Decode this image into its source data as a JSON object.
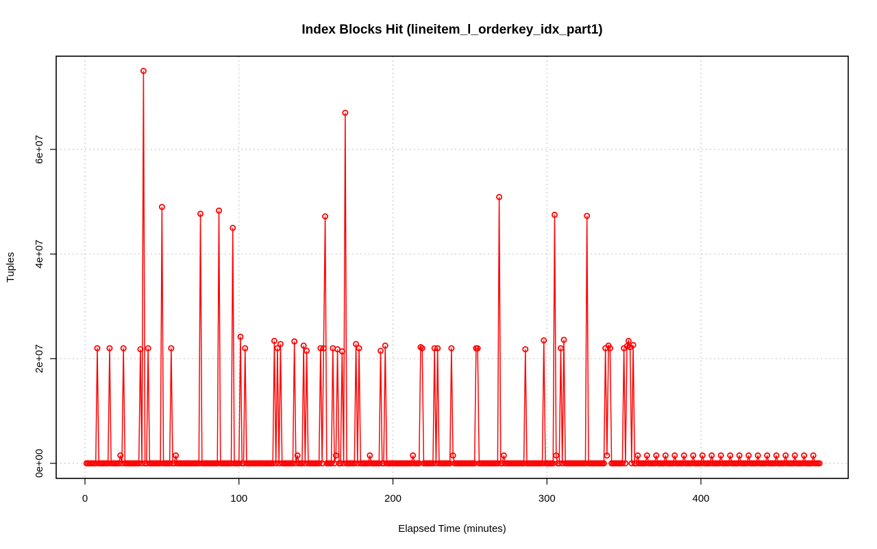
{
  "chart_data": {
    "type": "line",
    "title": "Index Blocks Hit (lineitem_l_orderkey_idx_part1)",
    "xlabel": "Elapsed Time (minutes)",
    "ylabel": "Tuples",
    "xlim": [
      0,
      476
    ],
    "ylim": [
      -3000000,
      78000000
    ],
    "x_ticks": [
      0,
      100,
      200,
      300,
      400
    ],
    "y_ticks": [
      0,
      20000000,
      40000000,
      60000000
    ],
    "x_tick_labels": [
      "0",
      "100",
      "200",
      "300",
      "400"
    ],
    "y_tick_labels": [
      "0e+00",
      "2e+07",
      "4e+07",
      "6e+07"
    ],
    "grid": true,
    "series": [
      {
        "color": "#ff0000",
        "peaks": [
          [
            8,
            22000000
          ],
          [
            16,
            22000000
          ],
          [
            23,
            1500000
          ],
          [
            25,
            22000000
          ],
          [
            36,
            21800000
          ],
          [
            38,
            75000000
          ],
          [
            41,
            22000000
          ],
          [
            50,
            49000000
          ],
          [
            56,
            22000000
          ],
          [
            59,
            1500000
          ],
          [
            75,
            47700000
          ],
          [
            87,
            48300000
          ],
          [
            96,
            45000000
          ],
          [
            101,
            24200000
          ],
          [
            104,
            22000000
          ],
          [
            123,
            23400000
          ],
          [
            125,
            22000000
          ],
          [
            127,
            22800000
          ],
          [
            136,
            23300000
          ],
          [
            138,
            1500000
          ],
          [
            142,
            22500000
          ],
          [
            144,
            21500000
          ],
          [
            153,
            22000000
          ],
          [
            155,
            22000000
          ],
          [
            156,
            47200000
          ],
          [
            161,
            22000000
          ],
          [
            163,
            1500000
          ],
          [
            164,
            21800000
          ],
          [
            167,
            21400000
          ],
          [
            169,
            67000000
          ],
          [
            176,
            22800000
          ],
          [
            178,
            22000000
          ],
          [
            185,
            1500000
          ],
          [
            192,
            21500000
          ],
          [
            195,
            22500000
          ],
          [
            213,
            1500000
          ],
          [
            218,
            22200000
          ],
          [
            219,
            22000000
          ],
          [
            227,
            22000000
          ],
          [
            229,
            22000000
          ],
          [
            238,
            22000000
          ],
          [
            239,
            1500000
          ],
          [
            254,
            22000000
          ],
          [
            255,
            22000000
          ],
          [
            269,
            50900000
          ],
          [
            272,
            1500000
          ],
          [
            286,
            21800000
          ],
          [
            298,
            23500000
          ],
          [
            305,
            47500000
          ],
          [
            306,
            1500000
          ],
          [
            309,
            22000000
          ],
          [
            311,
            23600000
          ],
          [
            326,
            47300000
          ],
          [
            338,
            22000000
          ],
          [
            339,
            1500000
          ],
          [
            340,
            22500000
          ],
          [
            341,
            22000000
          ],
          [
            350,
            22000000
          ],
          [
            352,
            22400000
          ],
          [
            353,
            23400000
          ],
          [
            354,
            22200000
          ],
          [
            356,
            22600000
          ],
          [
            359,
            1500000
          ],
          [
            365,
            1500000
          ],
          [
            371,
            1500000
          ],
          [
            377,
            1500000
          ],
          [
            383,
            1500000
          ],
          [
            389,
            1500000
          ],
          [
            395,
            1500000
          ],
          [
            401,
            1500000
          ],
          [
            407,
            1500000
          ],
          [
            413,
            1500000
          ],
          [
            419,
            1500000
          ],
          [
            425,
            1500000
          ],
          [
            431,
            1500000
          ],
          [
            437,
            1500000
          ],
          [
            443,
            1500000
          ],
          [
            449,
            1500000
          ],
          [
            455,
            1500000
          ],
          [
            461,
            1500000
          ],
          [
            467,
            1500000
          ],
          [
            473,
            1500000
          ]
        ],
        "x_start": 1,
        "x_end": 477,
        "baseline": 0
      }
    ]
  }
}
